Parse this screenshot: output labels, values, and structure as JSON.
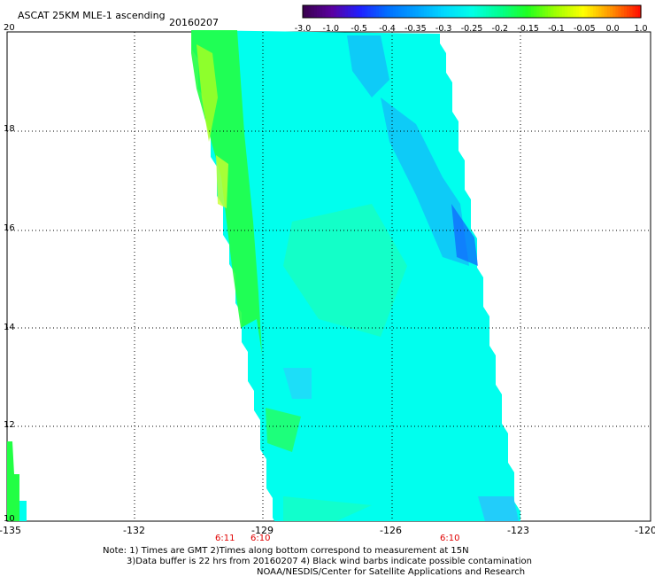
{
  "header": {
    "title": "ASCAT 25KM MLE-1 ascending",
    "date": "20160207"
  },
  "colorbar": {
    "tick_labels": [
      "-3.0",
      "-1.0",
      "-0.5",
      "-0.4",
      "-0.35",
      "-0.3",
      "-0.25",
      "-0.2",
      "-0.15",
      "-0.1",
      "-0.05",
      "0.0",
      "1.0"
    ],
    "colors": [
      "#3a0050",
      "#5a00a0",
      "#2020ff",
      "#0070ff",
      "#00a0ff",
      "#00d8ff",
      "#00ffe8",
      "#00ff90",
      "#20ff20",
      "#a0ff00",
      "#ffff00",
      "#ff9000",
      "#ff1000"
    ]
  },
  "map": {
    "lat_labels": [
      "20",
      "18",
      "16",
      "14",
      "12",
      "10"
    ],
    "lon_labels": [
      "-135",
      "-132",
      "-129",
      "-126",
      "-123",
      "-120"
    ],
    "time_labels": [
      "6:11",
      "6:10",
      "6:10"
    ],
    "swath_color_main": "#00ffee",
    "swath_color_green": "#22ff44",
    "swath_color_blue": "#1aa0ff"
  },
  "notes": {
    "line1": "Note: 1) Times are GMT 2)Times along bottom correspond to measurement at 15N",
    "line2": "3)Data buffer is 22 hrs from 20160207 4) Black wind barbs indicate possible contamination",
    "line3": "NOAA/NESDIS/Center for Satellite Applications and Research"
  }
}
